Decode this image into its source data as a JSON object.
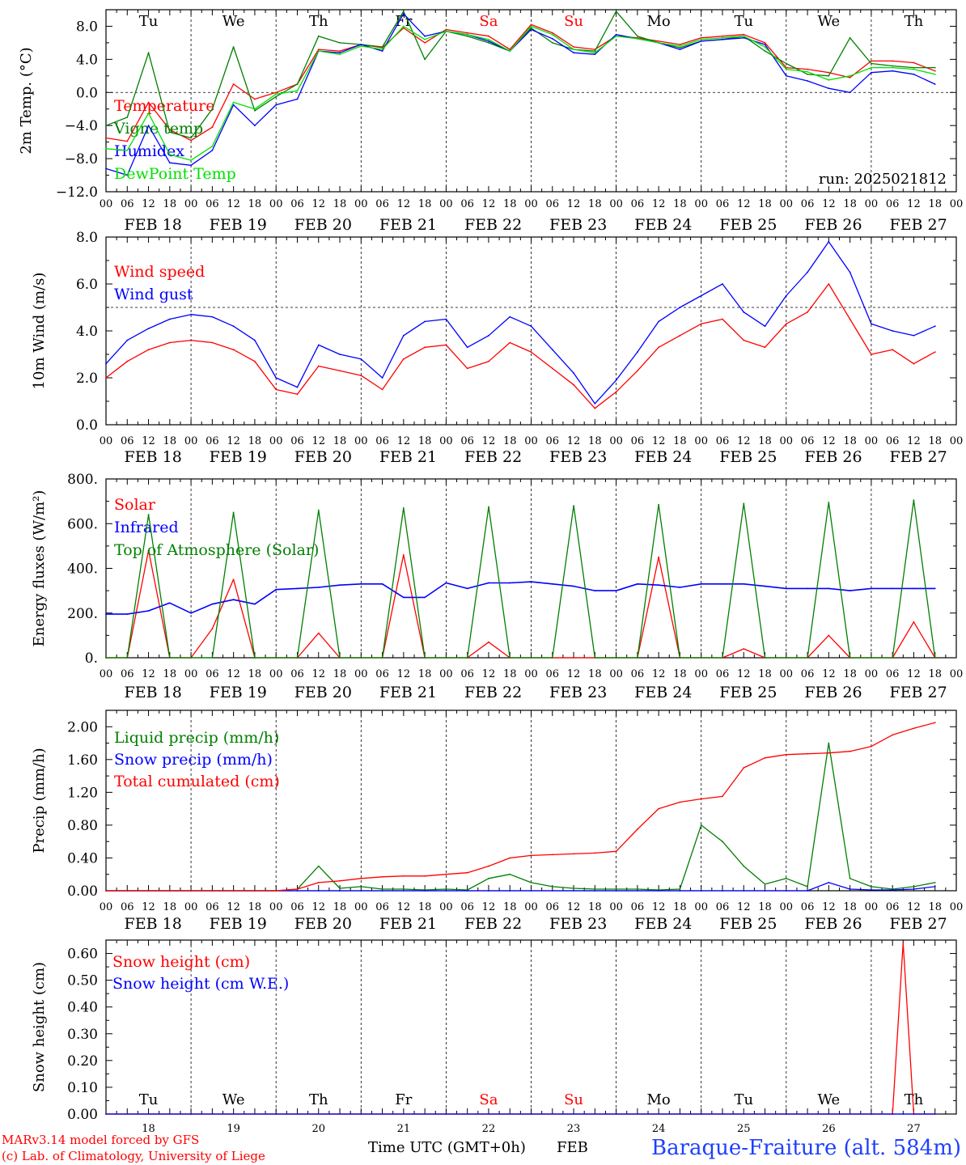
{
  "colors": {
    "red": "#ff0000",
    "green": "#007f00",
    "blue": "#0000ff",
    "lightgreen": "#00e000",
    "black": "#000000",
    "station_blue": "#1f3fff"
  },
  "axis": {
    "hour_labels": [
      "00",
      "06",
      "12",
      "18"
    ],
    "day_count": 10,
    "date_labels": [
      "FEB 18",
      "FEB 19",
      "FEB 20",
      "FEB 21",
      "FEB 22",
      "FEB 23",
      "FEB 24",
      "FEB 25",
      "FEB 26",
      "FEB 27"
    ],
    "weekdays": [
      "Tu",
      "We",
      "Th",
      "Fr",
      "Sa",
      "Su",
      "Mo",
      "Tu",
      "We",
      "Th"
    ],
    "weekday_colors": [
      "#000000",
      "#000000",
      "#000000",
      "#000000",
      "#ff0000",
      "#ff0000",
      "#000000",
      "#000000",
      "#000000",
      "#000000"
    ],
    "day_numbers": [
      "18",
      "19",
      "20",
      "21",
      "22",
      "23",
      "24",
      "25",
      "26",
      "27"
    ],
    "x_title": "Time UTC (GMT+0h)",
    "month": "FEB"
  },
  "footer": {
    "model": "MARv3.14 model forced by GFS",
    "lab": "(c) Lab. of Climatology, University of Liege",
    "station": "Baraque-Fraiture (alt. 584m)"
  },
  "chart_data": [
    {
      "type": "line",
      "id": "temp",
      "ylabel": "2m Temp. (°C)",
      "ylim": [
        -12,
        10
      ],
      "yticks": [
        -12,
        -8,
        -4,
        0,
        4,
        8
      ],
      "ytick_labels": [
        "−12.0",
        "−8.0",
        "−4.0",
        "0.0",
        "4.0",
        "8.0"
      ],
      "ref_line": 0,
      "run_label": "run: 2025021812",
      "x_hours": [
        0,
        6,
        12,
        18,
        24,
        30,
        36,
        42,
        48,
        54,
        60,
        66,
        72,
        78,
        84,
        90,
        96,
        102,
        108,
        114,
        120,
        126,
        132,
        138,
        144,
        150,
        156,
        162,
        168,
        174,
        180,
        186,
        192,
        198,
        204,
        210,
        216,
        222,
        228,
        234
      ],
      "series": [
        {
          "name": "Temperature",
          "color": "#ff0000",
          "values": [
            -5.5,
            -5.9,
            -1.2,
            -4.5,
            -5.8,
            -4.2,
            1.0,
            -0.8,
            0.0,
            1.0,
            5.2,
            5.0,
            5.8,
            5.4,
            7.8,
            6.0,
            7.6,
            7.2,
            6.8,
            5.2,
            8.2,
            7.2,
            5.5,
            5.2,
            6.8,
            6.6,
            6.2,
            5.8,
            6.6,
            6.8,
            7.0,
            6.0,
            3.0,
            2.8,
            2.4,
            1.8,
            3.8,
            3.8,
            3.6,
            2.6
          ]
        },
        {
          "name": "Vigne temp",
          "color": "#007f00",
          "values": [
            -4.0,
            -3.0,
            4.8,
            -4.8,
            -5.5,
            -2.0,
            5.5,
            -2.2,
            -0.5,
            1.0,
            6.8,
            6.0,
            5.8,
            5.5,
            9.8,
            4.0,
            7.4,
            6.8,
            6.0,
            5.0,
            7.8,
            6.0,
            5.2,
            5.0,
            9.8,
            6.8,
            6.0,
            5.4,
            6.2,
            6.4,
            6.8,
            5.0,
            3.5,
            2.2,
            2.0,
            6.6,
            3.5,
            3.2,
            3.0,
            3.0
          ]
        },
        {
          "name": "Humidex",
          "color": "#0000ff",
          "values": [
            -9.2,
            -10.0,
            -4.0,
            -8.5,
            -8.8,
            -7.0,
            -1.5,
            -4.0,
            -1.5,
            -0.8,
            5.0,
            4.8,
            5.8,
            5.0,
            9.5,
            6.8,
            7.4,
            7.0,
            6.2,
            5.0,
            7.6,
            6.5,
            4.8,
            4.6,
            7.0,
            6.5,
            6.0,
            5.2,
            6.2,
            6.4,
            6.6,
            5.8,
            2.0,
            1.4,
            0.5,
            0.0,
            2.4,
            2.6,
            2.2,
            1.0
          ]
        },
        {
          "name": "DewPoint Temp",
          "color": "#00e000",
          "values": [
            -6.8,
            -7.0,
            -2.5,
            -7.5,
            -8.2,
            -6.5,
            -1.2,
            -2.0,
            -0.2,
            0.2,
            5.0,
            4.6,
            5.6,
            5.2,
            8.0,
            6.4,
            7.4,
            7.0,
            6.4,
            5.0,
            8.0,
            7.0,
            5.2,
            4.8,
            6.8,
            6.5,
            6.0,
            5.6,
            6.4,
            6.6,
            6.8,
            5.5,
            2.8,
            2.5,
            1.5,
            2.0,
            3.0,
            3.0,
            2.8,
            2.2
          ]
        }
      ]
    },
    {
      "type": "line",
      "id": "wind",
      "ylabel": "10m Wind (m/s)",
      "ylim": [
        0,
        8
      ],
      "yticks": [
        0,
        2,
        4,
        6,
        8
      ],
      "ytick_labels": [
        "0.0",
        "2.0",
        "4.0",
        "6.0",
        "8.0"
      ],
      "ref_line": 5,
      "x_hours": [
        0,
        6,
        12,
        18,
        24,
        30,
        36,
        42,
        48,
        54,
        60,
        66,
        72,
        78,
        84,
        90,
        96,
        102,
        108,
        114,
        120,
        126,
        132,
        138,
        144,
        150,
        156,
        162,
        168,
        174,
        180,
        186,
        192,
        198,
        204,
        210,
        216,
        222,
        228,
        234
      ],
      "series": [
        {
          "name": "Wind speed",
          "color": "#ff0000",
          "values": [
            2.0,
            2.7,
            3.2,
            3.5,
            3.6,
            3.5,
            3.2,
            2.7,
            1.5,
            1.3,
            2.5,
            2.3,
            2.1,
            1.5,
            2.8,
            3.3,
            3.4,
            2.4,
            2.7,
            3.5,
            3.1,
            2.4,
            1.7,
            0.7,
            1.4,
            2.3,
            3.3,
            3.8,
            4.3,
            4.5,
            3.6,
            3.3,
            4.3,
            4.8,
            6.0,
            4.5,
            3.0,
            3.2,
            2.6,
            3.1
          ]
        },
        {
          "name": "Wind gust",
          "color": "#0000ff",
          "values": [
            2.6,
            3.6,
            4.1,
            4.5,
            4.7,
            4.6,
            4.2,
            3.6,
            2.0,
            1.6,
            3.4,
            3.0,
            2.8,
            2.0,
            3.8,
            4.4,
            4.5,
            3.3,
            3.8,
            4.6,
            4.2,
            3.2,
            2.2,
            0.9,
            1.9,
            3.1,
            4.4,
            5.0,
            5.5,
            6.0,
            4.8,
            4.2,
            5.5,
            6.5,
            7.8,
            6.5,
            4.3,
            4.0,
            3.8,
            4.2
          ]
        }
      ]
    },
    {
      "type": "line",
      "id": "flux",
      "ylabel": "Energy fluxes (W/m²)",
      "ylim": [
        0,
        800
      ],
      "yticks": [
        0,
        200,
        400,
        600,
        800
      ],
      "ytick_labels": [
        "0.",
        "200.",
        "400.",
        "600.",
        "800."
      ],
      "x_hours": [
        0,
        6,
        12,
        18,
        24,
        30,
        36,
        42,
        48,
        54,
        60,
        66,
        72,
        78,
        84,
        90,
        96,
        102,
        108,
        114,
        120,
        126,
        132,
        138,
        144,
        150,
        156,
        162,
        168,
        174,
        180,
        186,
        192,
        198,
        204,
        210,
        216,
        222,
        228,
        234
      ],
      "series": [
        {
          "name": "Solar",
          "color": "#ff0000",
          "values": [
            0,
            0,
            480,
            0,
            0,
            130,
            350,
            0,
            0,
            0,
            110,
            0,
            0,
            0,
            460,
            0,
            0,
            0,
            70,
            0,
            0,
            0,
            0,
            0,
            0,
            0,
            450,
            0,
            0,
            0,
            40,
            0,
            0,
            0,
            100,
            0,
            0,
            0,
            160,
            0
          ]
        },
        {
          "name": "Infrared",
          "color": "#0000ff",
          "values": [
            195,
            195,
            210,
            245,
            200,
            240,
            260,
            240,
            305,
            310,
            315,
            325,
            330,
            330,
            270,
            270,
            335,
            310,
            335,
            335,
            340,
            330,
            320,
            300,
            300,
            330,
            325,
            315,
            330,
            330,
            330,
            320,
            310,
            310,
            310,
            300,
            310,
            310,
            310,
            310
          ]
        },
        {
          "name": "Top of Atmosphere (Solar)",
          "color": "#007f00",
          "values": [
            0,
            0,
            640,
            0,
            0,
            0,
            650,
            0,
            0,
            0,
            660,
            0,
            0,
            0,
            670,
            0,
            0,
            0,
            675,
            0,
            0,
            0,
            680,
            0,
            0,
            0,
            685,
            0,
            0,
            0,
            690,
            0,
            0,
            0,
            695,
            0,
            0,
            0,
            705,
            0
          ]
        }
      ]
    },
    {
      "type": "line",
      "id": "precip",
      "ylabel": "Precip (mm/h)",
      "ylim": [
        0,
        2.2
      ],
      "yticks": [
        0,
        0.4,
        0.8,
        1.2,
        1.6,
        2.0
      ],
      "ytick_labels": [
        "0.00",
        "0.40",
        "0.80",
        "1.20",
        "1.60",
        "2.00"
      ],
      "x_hours": [
        0,
        6,
        12,
        18,
        24,
        30,
        36,
        42,
        48,
        54,
        60,
        66,
        72,
        78,
        84,
        90,
        96,
        102,
        108,
        114,
        120,
        126,
        132,
        138,
        144,
        150,
        156,
        162,
        168,
        174,
        180,
        186,
        192,
        198,
        204,
        210,
        216,
        222,
        228,
        234
      ],
      "series": [
        {
          "name": "Liquid precip (mm/h)",
          "color": "#007f00",
          "values": [
            0,
            0,
            0,
            0,
            0,
            0,
            0,
            0,
            0,
            0.02,
            0.3,
            0.03,
            0.05,
            0.02,
            0.02,
            0.01,
            0.02,
            0.01,
            0.15,
            0.2,
            0.1,
            0.05,
            0.03,
            0.02,
            0.02,
            0.02,
            0.01,
            0.02,
            0.8,
            0.6,
            0.3,
            0.08,
            0.15,
            0.05,
            1.8,
            0.15,
            0.05,
            0.02,
            0.05,
            0.1
          ]
        },
        {
          "name": "Snow precip (mm/h)",
          "color": "#0000ff",
          "values": [
            0,
            0,
            0,
            0,
            0,
            0,
            0,
            0,
            0,
            0,
            0,
            0,
            0,
            0,
            0,
            0,
            0,
            0,
            0,
            0,
            0,
            0,
            0,
            0,
            0,
            0,
            0,
            0,
            0,
            0,
            0,
            0,
            0,
            0,
            0.1,
            0.02,
            0.01,
            0.01,
            0.02,
            0.05
          ]
        },
        {
          "name": "Total cumulated (cm)",
          "color": "#ff0000",
          "values": [
            0,
            0,
            0,
            0,
            0,
            0,
            0,
            0,
            0,
            0.02,
            0.1,
            0.12,
            0.15,
            0.17,
            0.18,
            0.18,
            0.2,
            0.22,
            0.3,
            0.4,
            0.43,
            0.44,
            0.45,
            0.46,
            0.48,
            0.75,
            1.0,
            1.08,
            1.12,
            1.15,
            1.5,
            1.62,
            1.66,
            1.67,
            1.68,
            1.7,
            1.76,
            1.9,
            1.98,
            2.05
          ]
        }
      ]
    },
    {
      "type": "line",
      "id": "snow",
      "ylabel": "Snow height (cm)",
      "ylim": [
        0,
        0.65
      ],
      "yticks": [
        0,
        0.1,
        0.2,
        0.3,
        0.4,
        0.5,
        0.6
      ],
      "ytick_labels": [
        "0.00",
        "0.10",
        "0.20",
        "0.30",
        "0.40",
        "0.50",
        "0.60"
      ],
      "x_hours": [
        0,
        24,
        48,
        72,
        96,
        120,
        144,
        168,
        192,
        216,
        222,
        225,
        228,
        234
      ],
      "series": [
        {
          "name": "Snow height (cm)",
          "color": "#ff0000",
          "values": [
            0,
            0,
            0,
            0,
            0,
            0,
            0,
            0,
            0,
            0,
            0,
            0.64,
            0,
            0
          ]
        },
        {
          "name": "Snow height (cm W.E.)",
          "color": "#0000ff",
          "values": [
            0,
            0,
            0,
            0,
            0,
            0,
            0,
            0,
            0,
            0,
            0,
            0,
            0,
            0
          ]
        }
      ]
    }
  ]
}
